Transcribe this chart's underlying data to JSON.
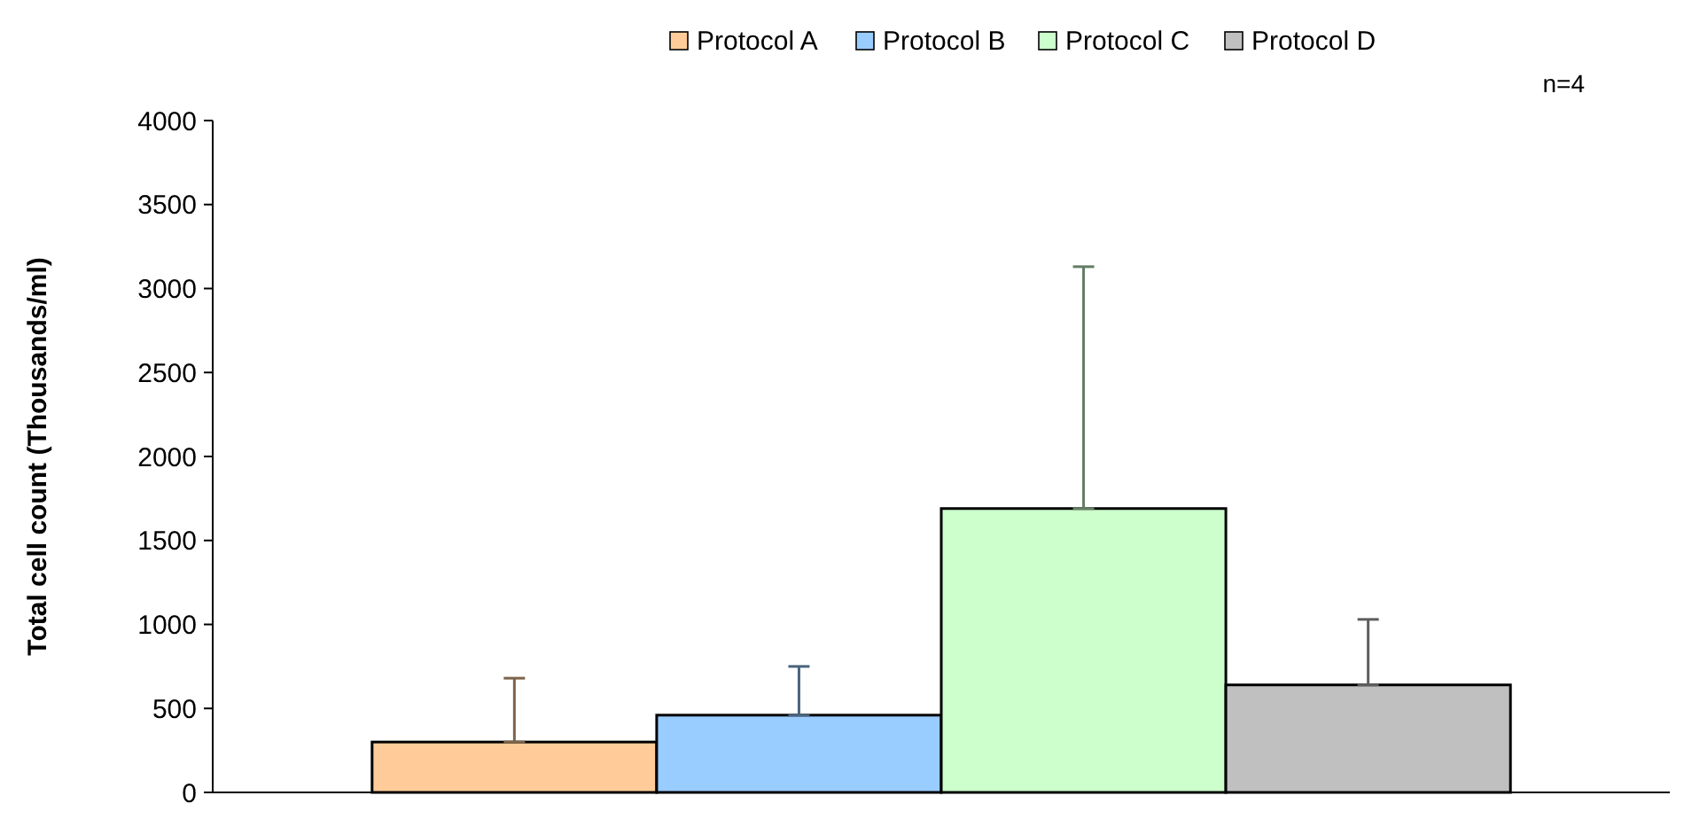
{
  "chart_data": {
    "type": "bar",
    "ylabel": "Total cell count (Thousands/ml)",
    "annotations": [
      "n=4"
    ],
    "categories": [
      null
    ],
    "series": [
      {
        "name": "Protocol A",
        "color": "#ffcc99",
        "values": [
          300
        ],
        "errors": [
          [
            300,
            680
          ]
        ]
      },
      {
        "name": "Protocol B",
        "color": "#99ccff",
        "values": [
          460
        ],
        "errors": [
          [
            460,
            750
          ]
        ]
      },
      {
        "name": "Protocol C",
        "color": "#ccffcc",
        "values": [
          1690
        ],
        "errors": [
          [
            1690,
            3130
          ]
        ]
      },
      {
        "name": "Protocol D",
        "color": "#c0c0c0",
        "values": [
          640
        ],
        "errors": [
          [
            640,
            1030
          ]
        ]
      }
    ],
    "ylim": [
      0,
      4000
    ],
    "yticks": [
      0,
      500,
      1000,
      1500,
      2000,
      2500,
      3000,
      3500,
      4000
    ],
    "legend": "top",
    "grid": false
  }
}
